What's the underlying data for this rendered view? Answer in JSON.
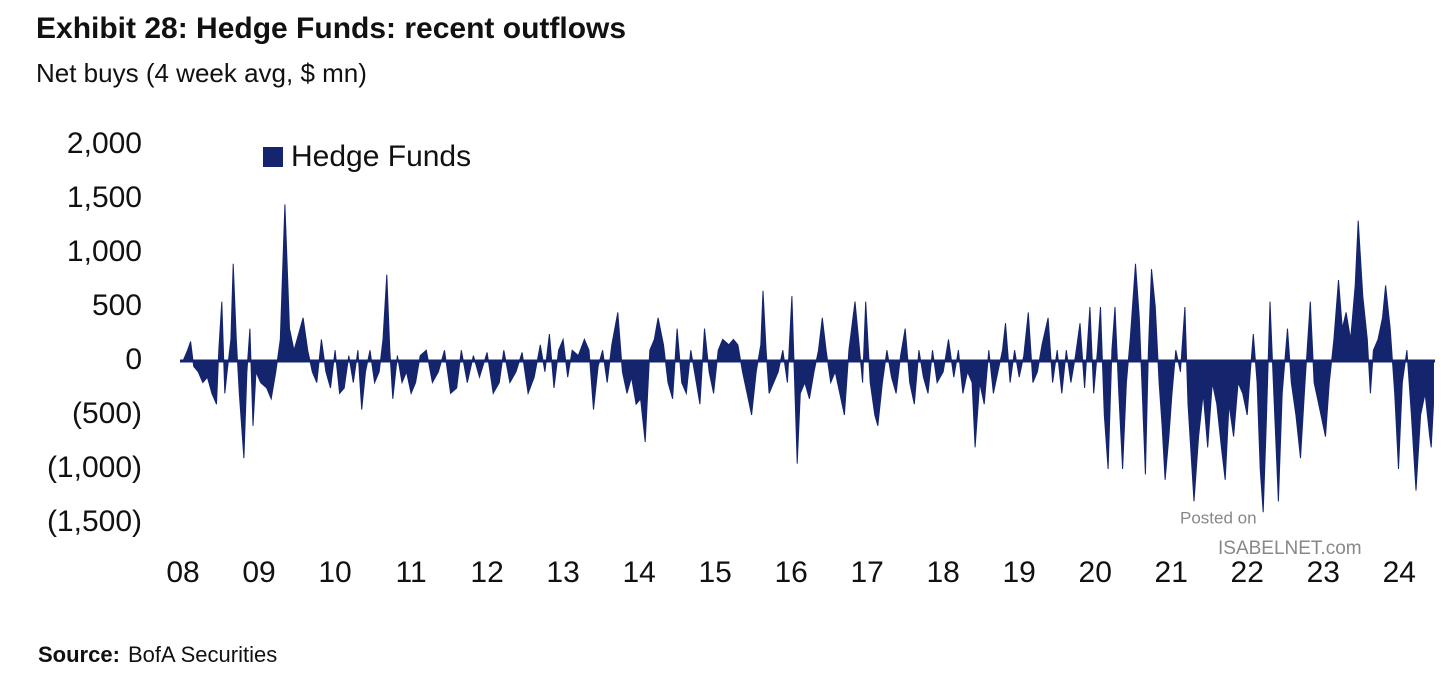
{
  "chart_data": {
    "type": "area",
    "title": "Exhibit 28: Hedge Funds: recent outflows",
    "subtitle": "Net buys (4 week avg, $ mn)",
    "source_label": "Source:",
    "source": "BofA Securities",
    "watermark": [
      "Posted on",
      "ISABELNET.com"
    ],
    "legend": "top-left",
    "xlim": [
      2007.96,
      2024.47
    ],
    "xticks": [
      {
        "value": 2008,
        "label": "08"
      },
      {
        "value": 2009,
        "label": "09"
      },
      {
        "value": 2010,
        "label": "10"
      },
      {
        "value": 2011,
        "label": "11"
      },
      {
        "value": 2012,
        "label": "12"
      },
      {
        "value": 2013,
        "label": "13"
      },
      {
        "value": 2014,
        "label": "14"
      },
      {
        "value": 2015,
        "label": "15"
      },
      {
        "value": 2016,
        "label": "16"
      },
      {
        "value": 2017,
        "label": "17"
      },
      {
        "value": 2018,
        "label": "18"
      },
      {
        "value": 2019,
        "label": "19"
      },
      {
        "value": 2020,
        "label": "20"
      },
      {
        "value": 2021,
        "label": "21"
      },
      {
        "value": 2022,
        "label": "22"
      },
      {
        "value": 2023,
        "label": "23"
      },
      {
        "value": 2024,
        "label": "24"
      }
    ],
    "ylim": [
      -1500,
      2000
    ],
    "yticks": [
      {
        "value": 2000,
        "label": "2,000"
      },
      {
        "value": 1500,
        "label": "1,500"
      },
      {
        "value": 1000,
        "label": "1,000"
      },
      500,
      0,
      {
        "value": -500,
        "label": "(500)"
      },
      {
        "value": -1000,
        "label": "(1,000)"
      },
      {
        "value": -1500,
        "label": "(1,500)"
      }
    ],
    "x": [
      2008.0,
      2008.06,
      2008.1,
      2008.14,
      2008.2,
      2008.26,
      2008.32,
      2008.38,
      2008.44,
      2008.47,
      2008.51,
      2008.55,
      2008.58,
      2008.63,
      2008.66,
      2008.7,
      2008.74,
      2008.8,
      2008.84,
      2008.88,
      2008.92,
      2008.96,
      2009.02,
      2009.1,
      2009.16,
      2009.22,
      2009.28,
      2009.34,
      2009.4,
      2009.46,
      2009.52,
      2009.58,
      2009.64,
      2009.7,
      2009.76,
      2009.82,
      2009.88,
      2009.94,
      2010.0,
      2010.06,
      2010.12,
      2010.18,
      2010.24,
      2010.3,
      2010.35,
      2010.4,
      2010.46,
      2010.52,
      2010.58,
      2010.63,
      2010.68,
      2010.72,
      2010.76,
      2010.82,
      2010.88,
      2010.94,
      2011.0,
      2011.06,
      2011.12,
      2011.2,
      2011.28,
      2011.36,
      2011.44,
      2011.52,
      2011.6,
      2011.66,
      2011.74,
      2011.82,
      2011.9,
      2012.0,
      2012.08,
      2012.16,
      2012.22,
      2012.3,
      2012.38,
      2012.46,
      2012.54,
      2012.62,
      2012.7,
      2012.76,
      2012.82,
      2012.88,
      2012.94,
      2013.0,
      2013.06,
      2013.12,
      2013.2,
      2013.28,
      2013.34,
      2013.4,
      2013.46,
      2013.52,
      2013.58,
      2013.64,
      2013.72,
      2013.78,
      2013.84,
      2013.9,
      2013.96,
      2014.02,
      2014.08,
      2014.14,
      2014.2,
      2014.25,
      2014.32,
      2014.38,
      2014.44,
      2014.5,
      2014.56,
      2014.62,
      2014.68,
      2014.74,
      2014.8,
      2014.86,
      2014.92,
      2014.98,
      2015.04,
      2015.1,
      2015.18,
      2015.24,
      2015.3,
      2015.36,
      2015.42,
      2015.48,
      2015.54,
      2015.6,
      2015.63,
      2015.67,
      2015.71,
      2015.77,
      2015.83,
      2015.89,
      2015.95,
      2016.01,
      2016.05,
      2016.08,
      2016.12,
      2016.18,
      2016.24,
      2016.3,
      2016.36,
      2016.41,
      2016.46,
      2016.52,
      2016.58,
      2016.64,
      2016.7,
      2016.76,
      2016.84,
      2016.9,
      2016.94,
      2016.98,
      2017.04,
      2017.1,
      2017.14,
      2017.2,
      2017.26,
      2017.32,
      2017.38,
      2017.44,
      2017.5,
      2017.56,
      2017.62,
      2017.68,
      2017.74,
      2017.8,
      2017.86,
      2017.92,
      2018.0,
      2018.07,
      2018.14,
      2018.2,
      2018.26,
      2018.32,
      2018.38,
      2018.42,
      2018.48,
      2018.54,
      2018.6,
      2018.66,
      2018.72,
      2018.78,
      2018.82,
      2018.88,
      2018.94,
      2019.0,
      2019.06,
      2019.12,
      2019.18,
      2019.24,
      2019.3,
      2019.38,
      2019.44,
      2019.5,
      2019.56,
      2019.62,
      2019.68,
      2019.74,
      2019.8,
      2019.86,
      2019.93,
      2019.98,
      2020.03,
      2020.07,
      2020.12,
      2020.17,
      2020.22,
      2020.26,
      2020.31,
      2020.36,
      2020.41,
      2020.46,
      2020.53,
      2020.58,
      2020.62,
      2020.66,
      2020.7,
      2020.74,
      2020.79,
      2020.84,
      2020.88,
      2020.92,
      2020.97,
      2021.01,
      2021.06,
      2021.12,
      2021.18,
      2021.22,
      2021.3,
      2021.36,
      2021.42,
      2021.48,
      2021.54,
      2021.6,
      2021.66,
      2021.71,
      2021.76,
      2021.82,
      2021.88,
      2021.94,
      2022.0,
      2022.04,
      2022.08,
      2022.13,
      2022.17,
      2022.21,
      2022.25,
      2022.3,
      2022.35,
      2022.41,
      2022.46,
      2022.53,
      2022.58,
      2022.64,
      2022.7,
      2022.76,
      2022.83,
      2022.88,
      2022.94,
      2023.03,
      2023.08,
      2023.14,
      2023.2,
      2023.25,
      2023.3,
      2023.36,
      2023.42,
      2023.46,
      2023.52,
      2023.58,
      2023.62,
      2023.66,
      2023.72,
      2023.78,
      2023.82,
      2023.88,
      2023.94,
      2023.99,
      2024.04,
      2024.1,
      2024.16,
      2024.22,
      2024.28,
      2024.34,
      2024.4,
      2024.42,
      2024.45
    ],
    "series": [
      {
        "name": "Hedge Funds",
        "color": "#14256e",
        "values": [
          0,
          100,
          180,
          -50,
          -100,
          -200,
          -150,
          -300,
          -400,
          100,
          550,
          -300,
          -100,
          200,
          900,
          200,
          -300,
          -900,
          -100,
          300,
          -600,
          -100,
          -200,
          -250,
          -350,
          -100,
          200,
          1450,
          300,
          100,
          250,
          400,
          100,
          -100,
          -200,
          200,
          -100,
          -250,
          100,
          -300,
          -250,
          50,
          -200,
          100,
          -450,
          -100,
          100,
          -200,
          -100,
          200,
          800,
          100,
          -350,
          50,
          -200,
          -100,
          -300,
          -200,
          50,
          100,
          -200,
          -100,
          100,
          -300,
          -250,
          100,
          -200,
          50,
          -150,
          80,
          -300,
          -200,
          100,
          -200,
          -100,
          80,
          -300,
          -150,
          150,
          -100,
          250,
          -250,
          100,
          200,
          -150,
          100,
          50,
          200,
          100,
          -450,
          -50,
          100,
          -200,
          150,
          450,
          -100,
          -300,
          -150,
          -400,
          -350,
          -750,
          100,
          200,
          400,
          150,
          -200,
          -350,
          300,
          -200,
          -300,
          100,
          -150,
          -400,
          300,
          -100,
          -300,
          100,
          200,
          150,
          200,
          150,
          -100,
          -300,
          -500,
          -100,
          150,
          650,
          100,
          -300,
          -200,
          -100,
          100,
          -200,
          600,
          -300,
          -950,
          -300,
          -200,
          -350,
          -100,
          100,
          400,
          100,
          -200,
          -100,
          -300,
          -500,
          100,
          550,
          100,
          -200,
          550,
          -200,
          -500,
          -600,
          -200,
          100,
          -150,
          -300,
          50,
          300,
          -200,
          -400,
          100,
          -150,
          -300,
          100,
          -200,
          -100,
          200,
          -150,
          100,
          -300,
          -100,
          -200,
          -800,
          -200,
          -400,
          100,
          -300,
          -100,
          100,
          350,
          -200,
          100,
          -150,
          50,
          450,
          -200,
          -100,
          150,
          400,
          -200,
          100,
          -300,
          100,
          -200,
          50,
          350,
          -250,
          500,
          -300,
          100,
          500,
          -500,
          -1000,
          100,
          500,
          -300,
          -1000,
          -200,
          200,
          900,
          400,
          -300,
          -1050,
          100,
          850,
          500,
          -200,
          -600,
          -1100,
          -700,
          -300,
          100,
          -100,
          500,
          -400,
          -1300,
          -700,
          -300,
          -800,
          -200,
          -400,
          -800,
          -1100,
          -400,
          -700,
          -200,
          -300,
          -500,
          -100,
          250,
          -200,
          -1000,
          -1400,
          -600,
          550,
          -300,
          -1300,
          -300,
          300,
          -200,
          -500,
          -900,
          -200,
          550,
          -200,
          -400,
          -700,
          -200,
          200,
          750,
          300,
          450,
          200,
          700,
          1300,
          600,
          200,
          -300,
          100,
          200,
          400,
          700,
          300,
          -300,
          -1000,
          -200,
          100,
          -500,
          -1200,
          -500,
          -300,
          -700,
          -800,
          -400
        ]
      }
    ]
  }
}
